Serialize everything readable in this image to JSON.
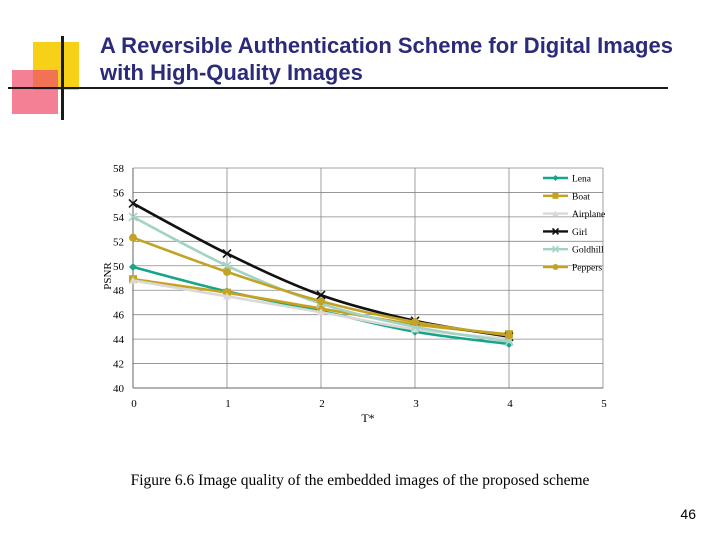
{
  "slide": {
    "title": "A Reversible Authentication Scheme for Digital Images with High-Quality Images",
    "caption": "Figure 6.6 Image quality of the embedded images of the proposed scheme",
    "page_number": "46"
  },
  "chart_data": {
    "type": "line",
    "title": "",
    "xlabel": "T*",
    "ylabel": "PSNR",
    "xlim": [
      0,
      5
    ],
    "ylim": [
      40,
      58
    ],
    "xticks": [
      0,
      1,
      2,
      3,
      4,
      5
    ],
    "yticks": [
      40,
      42,
      44,
      46,
      48,
      50,
      52,
      54,
      56,
      58
    ],
    "grid": true,
    "legend_position": "right",
    "x": [
      0,
      1,
      2,
      3,
      4
    ],
    "series": [
      {
        "name": "Lena",
        "color": "#17a589",
        "marker": "diamond",
        "values": [
          49.9,
          47.9,
          46.3,
          44.6,
          43.6
        ]
      },
      {
        "name": "Boat",
        "color": "#c8a21e",
        "marker": "square",
        "values": [
          48.9,
          47.8,
          46.5,
          45.2,
          44.4
        ]
      },
      {
        "name": "Airplane",
        "color": "#d9d9d9",
        "marker": "triangle",
        "values": [
          48.8,
          47.5,
          46.2,
          44.8,
          44.0
        ]
      },
      {
        "name": "Girl",
        "color": "#111111",
        "marker": "x",
        "values": [
          55.1,
          51.0,
          47.6,
          45.5,
          44.2
        ]
      },
      {
        "name": "Goldhill",
        "color": "#a3d3c6",
        "marker": "x",
        "values": [
          54.0,
          50.0,
          46.9,
          45.0,
          43.8
        ]
      },
      {
        "name": "Peppers",
        "color": "#c3a325",
        "marker": "circle",
        "values": [
          52.3,
          49.5,
          47.1,
          45.4,
          44.3
        ]
      }
    ]
  }
}
